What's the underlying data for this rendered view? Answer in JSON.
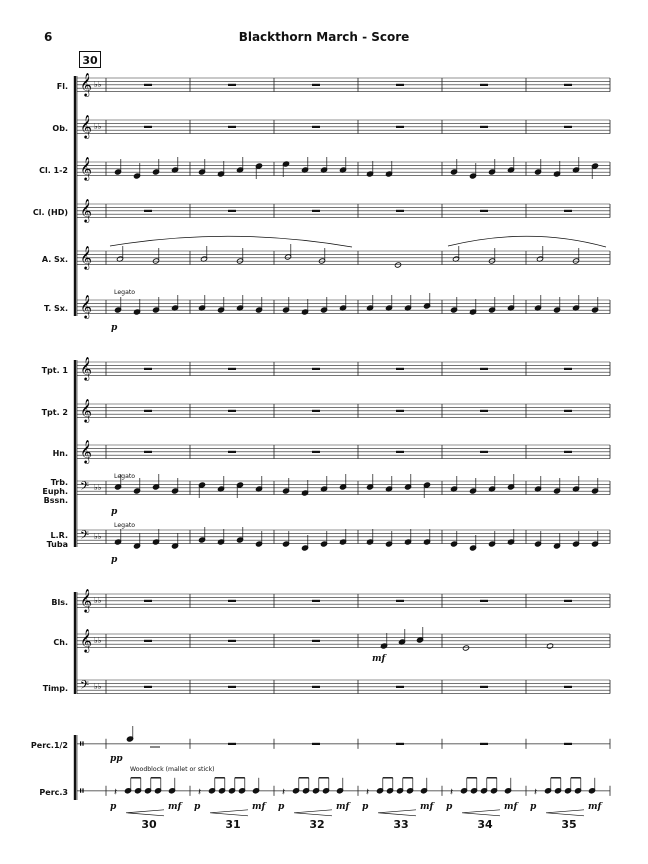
{
  "header": {
    "page_number": "6",
    "title": "Blackthorn March - Score",
    "rehearsal_mark": "30"
  },
  "instruments": [
    {
      "name": "Fl.",
      "clef": "treble"
    },
    {
      "name": "Ob.",
      "clef": "treble"
    },
    {
      "name": "Cl. 1-2",
      "clef": "treble"
    },
    {
      "name": "Cl. (HD)",
      "clef": "treble"
    },
    {
      "name": "A. Sx.",
      "clef": "treble"
    },
    {
      "name": "T. Sx.",
      "clef": "treble"
    },
    {
      "name": "Tpt. 1",
      "clef": "treble"
    },
    {
      "name": "Tpt. 2",
      "clef": "treble"
    },
    {
      "name": "Hn.",
      "clef": "treble"
    },
    {
      "name": "Trb.\nEuph.\nBssn.",
      "clef": "bass"
    },
    {
      "name": "L.R.\nTuba",
      "clef": "bass"
    },
    {
      "name": "Bls.",
      "clef": "treble"
    },
    {
      "name": "Ch.",
      "clef": "treble"
    },
    {
      "name": "Timp.",
      "clef": "bass"
    },
    {
      "name": "Perc.1/2",
      "clef": "percussion"
    },
    {
      "name": "Perc.3",
      "clef": "percussion"
    }
  ],
  "expressions": {
    "legato": "Legato",
    "woodblock": "Woodblock (mallet or stick)",
    "p": "p",
    "pp": "pp",
    "mf": "mf"
  },
  "measure_numbers": [
    "30",
    "31",
    "32",
    "33",
    "34",
    "35"
  ]
}
